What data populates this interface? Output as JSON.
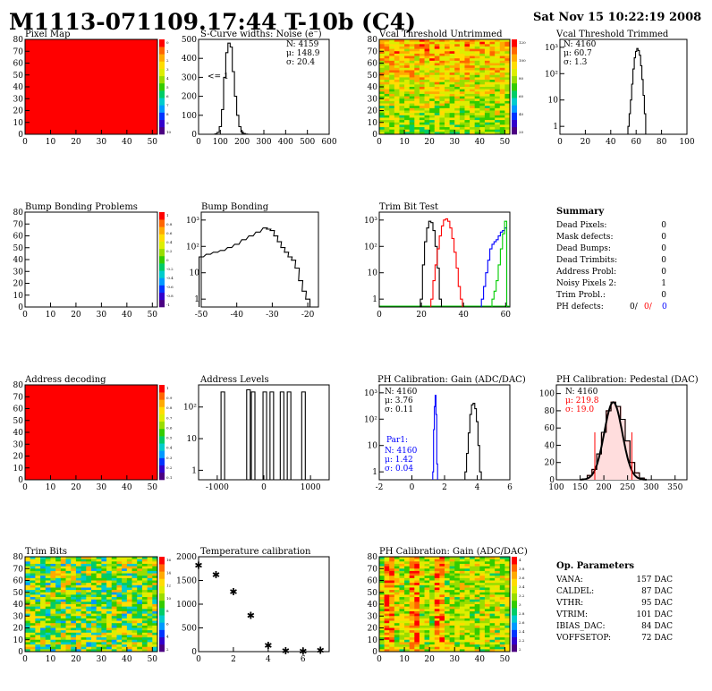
{
  "header": {
    "title": "M1113-071109.17:44 T-10b (C4)",
    "datetime": "Sat Nov 15 10:22:19 2008"
  },
  "colors": {
    "frame": "#000000",
    "red_map": "#ff0000",
    "blue_text": "#0000ff",
    "red_text": "#ff0000",
    "green_line": "#00cc00",
    "palette": [
      "#4b0082",
      "#3300cc",
      "#0033ff",
      "#0099ff",
      "#00cccc",
      "#00cc66",
      "#33cc00",
      "#99dd00",
      "#ddee00",
      "#ffdd00",
      "#ffaa00",
      "#ff6600",
      "#ff0000"
    ]
  },
  "panels": {
    "pixel_map": {
      "title": "Pixel Map",
      "x_ticks": [
        "0",
        "10",
        "20",
        "30",
        "40",
        "50"
      ],
      "y_ticks": [
        "0",
        "10",
        "20",
        "30",
        "40",
        "50",
        "60",
        "70",
        "80"
      ],
      "palette_ticks": [
        "0",
        "1",
        "2",
        "3",
        "4",
        "5",
        "6",
        "7",
        "8",
        "9",
        "10"
      ],
      "fill": "uniform-red"
    },
    "scurve": {
      "title": "S-Curve widths: Noise (e⁻)",
      "stats": {
        "n": "N: 4159",
        "mu": "μ: 148.9",
        "sigma": "σ: 20.4"
      },
      "underflow_label": "<= 1",
      "x_ticks": [
        "0",
        "100",
        "200",
        "300",
        "400",
        "500",
        "600"
      ],
      "y_ticks": [
        "0",
        "100",
        "200",
        "300",
        "400",
        "500"
      ]
    },
    "vcal_untrimmed": {
      "title": "Vcal Threshold Untrimmed",
      "x_ticks": [
        "0",
        "10",
        "20",
        "30",
        "40",
        "50"
      ],
      "y_ticks": [
        "0",
        "10",
        "20",
        "30",
        "40",
        "50",
        "60",
        "70",
        "80"
      ],
      "palette_ticks": [
        "120",
        "100",
        "80",
        "60",
        "40",
        "20"
      ]
    },
    "vcal_trimmed": {
      "title": "Vcal Threshold Trimmed",
      "stats": {
        "n": "N: 4160",
        "mu": "μ: 60.7",
        "sigma": "σ:  1.3"
      },
      "x_ticks": [
        "0",
        "20",
        "40",
        "60",
        "80",
        "100"
      ],
      "y_ticks": [
        "1",
        "10",
        "10²",
        "10³"
      ]
    },
    "bump_problems": {
      "title": "Bump Bonding Problems",
      "x_ticks": [
        "0",
        "10",
        "20",
        "30",
        "40",
        "50"
      ],
      "y_ticks": [
        "0",
        "10",
        "20",
        "30",
        "40",
        "50",
        "60",
        "70",
        "80"
      ],
      "palette_ticks": [
        "1",
        "0.8",
        "0.6",
        "0.4",
        "0.2",
        "0",
        "-0.2",
        "-0.4",
        "-0.6",
        "-0.8",
        "-1"
      ]
    },
    "bump_bonding": {
      "title": "Bump Bonding",
      "x_ticks": [
        "-50",
        "-40",
        "-30",
        "-20"
      ],
      "y_ticks": [
        "1",
        "10",
        "10²",
        "10³"
      ]
    },
    "trim_bit_test": {
      "title": "Trim Bit Test",
      "x_ticks": [
        "0",
        "20",
        "40",
        "60"
      ],
      "y_ticks": [
        "1",
        "10",
        "10²",
        "10³"
      ]
    },
    "summary": {
      "heading": "Summary",
      "rows": [
        {
          "label": "Dead Pixels:",
          "value": "0"
        },
        {
          "label": "Mask defects:",
          "value": "0"
        },
        {
          "label": "Dead Bumps:",
          "value": "0"
        },
        {
          "label": "Dead Trimbits:",
          "value": "0"
        },
        {
          "label": "Address Probl:",
          "value": "0"
        },
        {
          "label": "Noisy Pixels 2:",
          "value": "1"
        },
        {
          "label": "Trim Probl.:",
          "value": "0"
        }
      ],
      "ph_label": "PH defects:",
      "ph_values": [
        "0/",
        "0/",
        "0"
      ]
    },
    "address_decoding": {
      "title": "Address decoding",
      "x_ticks": [
        "0",
        "10",
        "20",
        "30",
        "40",
        "50"
      ],
      "y_ticks": [
        "0",
        "10",
        "20",
        "30",
        "40",
        "50",
        "60",
        "70",
        "80"
      ],
      "palette_ticks": [
        "1",
        "0.9",
        "0.8",
        "0.7",
        "0.6",
        "0.5",
        "0.4",
        "0.3",
        "0.2",
        "0.1"
      ]
    },
    "address_levels": {
      "title": "Address Levels",
      "x_ticks": [
        "-1000",
        "0",
        "1000"
      ],
      "y_ticks": [
        "1",
        "10",
        "10²"
      ]
    },
    "ph_gain": {
      "title": "PH Calibration: Gain (ADC/DAC)",
      "stats": {
        "n": "N: 4160",
        "mu": "μ: 3.76",
        "sigma": "σ: 0.11"
      },
      "par1": {
        "name": "Par1:",
        "n": "N: 4160",
        "mu": "μ: 1.42",
        "sigma": "σ: 0.04"
      },
      "x_ticks": [
        "-2",
        "0",
        "2",
        "4",
        "6"
      ],
      "y_ticks": [
        "1",
        "10",
        "10²",
        "10³"
      ]
    },
    "ph_pedestal": {
      "title": "PH Calibration: Pedestal (DAC)",
      "stats": {
        "n": "N: 4160",
        "mu": "μ: 219.8",
        "sigma": "σ: 19.0"
      },
      "x_ticks": [
        "100",
        "150",
        "200",
        "250",
        "300",
        "350"
      ],
      "y_ticks": [
        "0",
        "20",
        "40",
        "60",
        "80",
        "100"
      ]
    },
    "trim_bits": {
      "title": "Trim Bits",
      "x_ticks": [
        "0",
        "10",
        "20",
        "30",
        "40",
        "50"
      ],
      "y_ticks": [
        "0",
        "10",
        "20",
        "30",
        "40",
        "50",
        "60",
        "70",
        "80"
      ],
      "palette_ticks": [
        "16",
        "14",
        "12",
        "10",
        "8",
        "6",
        "4",
        "2"
      ]
    },
    "temperature": {
      "title": "Temperature calibration",
      "x_ticks": [
        "0",
        "2",
        "4",
        "6"
      ],
      "y_ticks": [
        "0",
        "500",
        "1000",
        "1500",
        "2000"
      ]
    },
    "ph_gain_map": {
      "title": "PH Calibration: Gain (ADC/DAC)",
      "x_ticks": [
        "0",
        "10",
        "20",
        "30",
        "40",
        "50"
      ],
      "y_ticks": [
        "0",
        "10",
        "20",
        "30",
        "40",
        "50",
        "60",
        "70",
        "80"
      ],
      "palette_ticks": [
        "4",
        "3.8",
        "3.6",
        "3.4",
        "3.2",
        "3",
        "2.8",
        "2.6",
        "2.4",
        "2.2",
        "2"
      ]
    },
    "op_params": {
      "heading": "Op. Parameters",
      "rows": [
        {
          "label": "VANA:",
          "value": "157 DAC"
        },
        {
          "label": "CALDEL:",
          "value": "87 DAC"
        },
        {
          "label": "VTHR:",
          "value": "95 DAC"
        },
        {
          "label": "VTRIM:",
          "value": "101 DAC"
        },
        {
          "label": "IBIAS_DAC:",
          "value": "84 DAC"
        },
        {
          "label": "VOFFSETOP:",
          "value": "72 DAC"
        }
      ]
    }
  },
  "chart_data": [
    {
      "type": "heatmap",
      "title": "Pixel Map",
      "xlim": [
        0,
        52
      ],
      "ylim": [
        0,
        80
      ],
      "zlim": [
        0,
        10
      ],
      "value_everywhere": 10
    },
    {
      "type": "bar",
      "title": "S-Curve widths: Noise (e⁻)",
      "xlim": [
        0,
        600
      ],
      "ylim": [
        0,
        500
      ],
      "x": [
        80,
        90,
        100,
        110,
        120,
        130,
        140,
        150,
        160,
        170,
        180,
        190,
        200,
        210,
        220
      ],
      "values": [
        2,
        10,
        40,
        130,
        300,
        430,
        480,
        460,
        330,
        200,
        100,
        40,
        12,
        4,
        1
      ],
      "stats": {
        "N": 4159,
        "mean": 148.9,
        "sigma": 20.4
      }
    },
    {
      "type": "heatmap",
      "title": "Vcal Threshold Untrimmed",
      "xlim": [
        0,
        52
      ],
      "ylim": [
        0,
        80
      ],
      "zlim": [
        20,
        130
      ]
    },
    {
      "type": "bar",
      "title": "Vcal Threshold Trimmed",
      "log_y": true,
      "xlim": [
        0,
        100
      ],
      "ylim": [
        0.5,
        2000
      ],
      "x": [
        54,
        55,
        56,
        57,
        58,
        59,
        60,
        61,
        62,
        63,
        64,
        65,
        66,
        67
      ],
      "values": [
        1,
        3,
        10,
        40,
        150,
        400,
        700,
        900,
        750,
        500,
        200,
        60,
        15,
        3
      ],
      "stats": {
        "N": 4160,
        "mean": 60.7,
        "sigma": 1.3
      }
    },
    {
      "type": "heatmap",
      "title": "Bump Bonding Problems",
      "xlim": [
        0,
        52
      ],
      "ylim": [
        0,
        80
      ],
      "zlim": [
        -1,
        1
      ]
    },
    {
      "type": "line",
      "title": "Bump Bonding",
      "log_y": true,
      "xlim": [
        -50,
        -17
      ],
      "ylim": [
        0.5,
        2000
      ],
      "x": [
        -50,
        -48,
        -46,
        -44,
        -42,
        -40,
        -38,
        -36,
        -34,
        -32,
        -31,
        -30,
        -29,
        -28,
        -27,
        -26,
        -25,
        -24,
        -23,
        -22,
        -21,
        -20
      ],
      "values": [
        40,
        50,
        60,
        70,
        90,
        120,
        180,
        250,
        350,
        500,
        450,
        400,
        250,
        150,
        90,
        60,
        40,
        30,
        15,
        5,
        2,
        1
      ]
    },
    {
      "type": "line",
      "title": "Trim Bit Test",
      "log_y": true,
      "xlim": [
        0,
        62
      ],
      "ylim": [
        0.5,
        2000
      ],
      "series": [
        {
          "color": "black",
          "x": [
            20,
            21,
            22,
            23,
            24,
            25,
            26,
            27,
            28,
            29
          ],
          "values": [
            1,
            20,
            150,
            500,
            900,
            800,
            400,
            100,
            15,
            1
          ]
        },
        {
          "color": "red",
          "x": [
            25,
            26,
            27,
            28,
            29,
            30,
            31,
            32,
            33,
            34,
            35,
            36,
            37,
            38,
            39
          ],
          "values": [
            1,
            5,
            20,
            80,
            250,
            600,
            1000,
            1100,
            900,
            500,
            200,
            60,
            15,
            3,
            1
          ]
        },
        {
          "color": "blue",
          "x": [
            49,
            50,
            51,
            52,
            53,
            54,
            55,
            56,
            57,
            58,
            59,
            60
          ],
          "values": [
            1,
            3,
            10,
            30,
            80,
            120,
            150,
            180,
            250,
            350,
            400,
            500
          ]
        },
        {
          "color": "green",
          "x": [
            54,
            55,
            56,
            57,
            58,
            59,
            60
          ],
          "values": [
            1,
            2,
            5,
            20,
            80,
            300,
            900
          ]
        }
      ]
    },
    {
      "type": "heatmap",
      "title": "Address decoding",
      "xlim": [
        0,
        52
      ],
      "ylim": [
        0,
        80
      ],
      "zlim": [
        0,
        1
      ],
      "value_everywhere": 1
    },
    {
      "type": "bar",
      "title": "Address Levels",
      "log_y": true,
      "xlim": [
        -1400,
        1400
      ],
      "ylim": [
        0.5,
        500
      ],
      "x": [
        -880,
        -330,
        -230,
        20,
        170,
        390,
        540,
        850
      ],
      "values": [
        300,
        350,
        300,
        300,
        300,
        300,
        300,
        300
      ]
    },
    {
      "type": "line",
      "title": "PH Calibration: Gain (ADC/DAC)",
      "log_y": true,
      "xlim": [
        -2,
        6
      ],
      "ylim": [
        0.5,
        2000
      ],
      "series": [
        {
          "color": "black",
          "x": [
            3.3,
            3.4,
            3.5,
            3.6,
            3.7,
            3.8,
            3.9,
            4.0,
            4.1,
            4.2
          ],
          "values": [
            1,
            5,
            30,
            150,
            350,
            400,
            250,
            80,
            10,
            1
          ]
        },
        {
          "color": "blue",
          "name": "Par1:",
          "x": [
            1.3,
            1.35,
            1.4,
            1.45,
            1.5,
            1.55
          ],
          "values": [
            1,
            40,
            300,
            800,
            150,
            2
          ]
        }
      ],
      "stats": {
        "N": 4160,
        "mean": 3.76,
        "sigma": 0.11
      }
    },
    {
      "type": "bar",
      "title": "PH Calibration: Pedestal (DAC)",
      "xlim": [
        100,
        375
      ],
      "ylim": [
        0,
        110
      ],
      "x": [
        160,
        170,
        180,
        190,
        200,
        210,
        220,
        230,
        240,
        250,
        260,
        270,
        280
      ],
      "values": [
        1,
        5,
        12,
        30,
        55,
        80,
        90,
        85,
        70,
        45,
        20,
        8,
        2
      ],
      "stats": {
        "N": 4160,
        "mean": 219.8,
        "sigma": 19.0
      }
    },
    {
      "type": "heatmap",
      "title": "Trim Bits",
      "xlim": [
        0,
        52
      ],
      "ylim": [
        0,
        80
      ],
      "zlim": [
        1,
        16
      ]
    },
    {
      "type": "scatter",
      "title": "Temperature calibration",
      "xlim": [
        0,
        7.5
      ],
      "ylim": [
        0,
        2000
      ],
      "x": [
        0,
        1,
        2,
        3,
        4,
        5,
        6,
        7
      ],
      "values": [
        1820,
        1620,
        1260,
        760,
        130,
        20,
        10,
        25
      ]
    },
    {
      "type": "heatmap",
      "title": "PH Calibration: Gain (ADC/DAC)",
      "xlim": [
        0,
        52
      ],
      "ylim": [
        0,
        80
      ],
      "zlim": [
        2,
        4
      ]
    }
  ]
}
